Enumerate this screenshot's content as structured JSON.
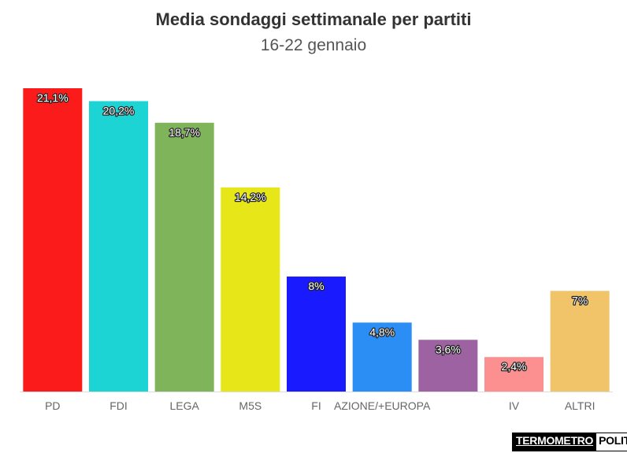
{
  "title": "Media sondaggi settimanale per partiti",
  "subtitle": "16-22 gennaio",
  "logo": {
    "part1": "TERMOMETRO",
    "part2": "POLITICO"
  },
  "chart_data": {
    "type": "bar",
    "title": "Media sondaggi settimanale per partiti",
    "subtitle": "16-22 gennaio",
    "categories": [
      "PD",
      "FDI",
      "LEGA",
      "M5S",
      "FI",
      "AZIONE/+EUROPA",
      "",
      "IV",
      "ALTRI"
    ],
    "values": [
      21.1,
      20.2,
      18.7,
      14.2,
      8,
      4.8,
      3.6,
      2.4,
      7
    ],
    "value_labels": [
      "21,1%",
      "20,2%",
      "18,7%",
      "14,2%",
      "8%",
      "4,8%",
      "3,6%",
      "2,4%",
      "7%"
    ],
    "colors": [
      "#fc1b1b",
      "#1cd4d4",
      "#7fb45b",
      "#e6e619",
      "#1a1aff",
      "#2a8ef5",
      "#9d62a2",
      "#fc8f8f",
      "#f1c46a"
    ],
    "xlabel": "",
    "ylabel": "",
    "ylim": [
      0,
      21.1
    ],
    "grid": false,
    "legend": "none"
  }
}
